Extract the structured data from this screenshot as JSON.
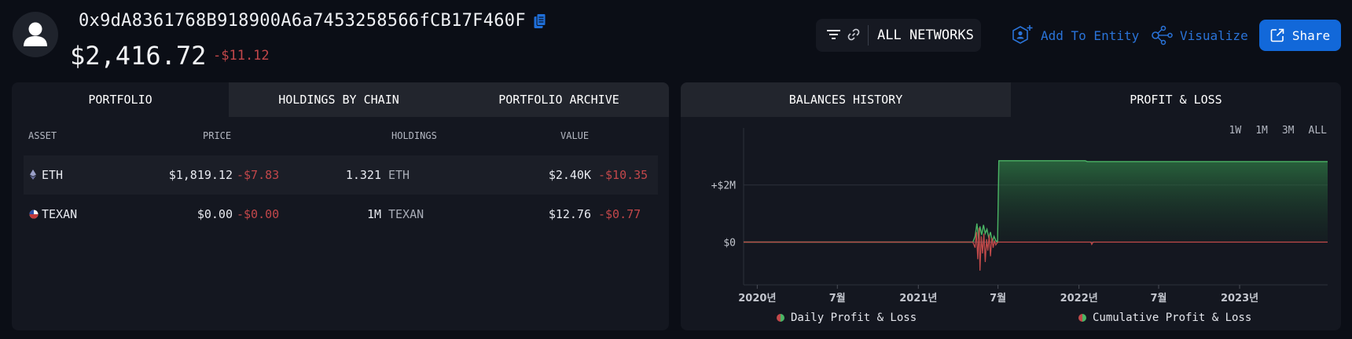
{
  "header": {
    "address": "0x9dA8361768B918900A6a7453258566fCB17F460F",
    "balance": "$2,416.72",
    "balance_change": "-$11.12"
  },
  "network_filter": {
    "label": "ALL NETWORKS"
  },
  "actions": {
    "add_to_entity": "Add To Entity",
    "visualize": "Visualize",
    "share": "Share"
  },
  "portfolio": {
    "tabs": [
      "PORTFOLIO",
      "HOLDINGS BY CHAIN",
      "PORTFOLIO ARCHIVE"
    ],
    "active_tab": "PORTFOLIO",
    "columns": [
      "ASSET",
      "PRICE",
      "HOLDINGS",
      "VALUE"
    ],
    "rows": [
      {
        "asset": "ETH",
        "price": "$1,819.12",
        "price_change": "-$7.83",
        "holdings_amount": "1.321",
        "holdings_symbol": "ETH",
        "value": "$2.40K",
        "value_change": "-$10.35"
      },
      {
        "asset": "TEXAN",
        "price": "$0.00",
        "price_change": "-$0.00",
        "holdings_amount": "1M",
        "holdings_symbol": "TEXAN",
        "value": "$12.76",
        "value_change": "-$0.77"
      }
    ]
  },
  "history": {
    "tabs": [
      "BALANCES HISTORY",
      "PROFIT & LOSS"
    ],
    "active_tab": "PROFIT & LOSS",
    "ranges": [
      "1W",
      "1M",
      "3M",
      "ALL"
    ]
  },
  "chart_data": {
    "type": "area",
    "y_tick_labels": [
      "+$2M",
      "$0"
    ],
    "y_ticks": [
      2000000,
      0
    ],
    "ylim": [
      -1500000,
      4000000
    ],
    "x_tick_labels": [
      "2020년",
      "7월",
      "2021년",
      "7월",
      "2022년",
      "7월",
      "2023년"
    ],
    "x_ticks": [
      "2020-01-01",
      "2020-07-01",
      "2021-01-01",
      "2021-07-01",
      "2022-01-01",
      "2022-07-01",
      "2023-01-01"
    ],
    "xlim": [
      "2019-12-01",
      "2023-07-20"
    ],
    "grid": true,
    "legend_position": "bottom",
    "colors": {
      "daily": "#c24a4a",
      "cumulative": "#4bb565"
    },
    "series": [
      {
        "name": "Daily Profit & Loss",
        "points": [
          [
            "2019-12-01",
            0
          ],
          [
            "2021-05-05",
            0
          ],
          [
            "2021-05-10",
            -200000
          ],
          [
            "2021-05-13",
            350000
          ],
          [
            "2021-05-16",
            -600000
          ],
          [
            "2021-05-19",
            500000
          ],
          [
            "2021-05-21",
            -1000000
          ],
          [
            "2021-05-24",
            200000
          ],
          [
            "2021-05-27",
            -400000
          ],
          [
            "2021-05-30",
            300000
          ],
          [
            "2021-06-02",
            -700000
          ],
          [
            "2021-06-05",
            100000
          ],
          [
            "2021-06-08",
            -300000
          ],
          [
            "2021-06-11",
            250000
          ],
          [
            "2021-06-14",
            -500000
          ],
          [
            "2021-06-17",
            150000
          ],
          [
            "2021-06-20",
            -200000
          ],
          [
            "2021-06-23",
            50000
          ],
          [
            "2021-06-26",
            -100000
          ],
          [
            "2021-06-30",
            0
          ],
          [
            "2022-01-28",
            0
          ],
          [
            "2022-01-30",
            -80000
          ],
          [
            "2022-02-02",
            0
          ],
          [
            "2023-07-20",
            0
          ]
        ]
      },
      {
        "name": "Cumulative Profit & Loss",
        "points": [
          [
            "2019-12-01",
            0
          ],
          [
            "2021-05-05",
            0
          ],
          [
            "2021-05-10",
            200000
          ],
          [
            "2021-05-14",
            650000
          ],
          [
            "2021-05-18",
            100000
          ],
          [
            "2021-05-21",
            550000
          ],
          [
            "2021-05-25",
            250000
          ],
          [
            "2021-05-29",
            600000
          ],
          [
            "2021-06-02",
            300000
          ],
          [
            "2021-06-06",
            450000
          ],
          [
            "2021-06-10",
            150000
          ],
          [
            "2021-06-14",
            350000
          ],
          [
            "2021-06-18",
            0
          ],
          [
            "2021-06-22",
            200000
          ],
          [
            "2021-06-26",
            50000
          ],
          [
            "2021-06-30",
            0
          ],
          [
            "2021-07-03",
            2850000
          ],
          [
            "2022-01-15",
            2850000
          ],
          [
            "2022-01-20",
            2820000
          ],
          [
            "2023-07-20",
            2820000
          ]
        ]
      }
    ]
  }
}
